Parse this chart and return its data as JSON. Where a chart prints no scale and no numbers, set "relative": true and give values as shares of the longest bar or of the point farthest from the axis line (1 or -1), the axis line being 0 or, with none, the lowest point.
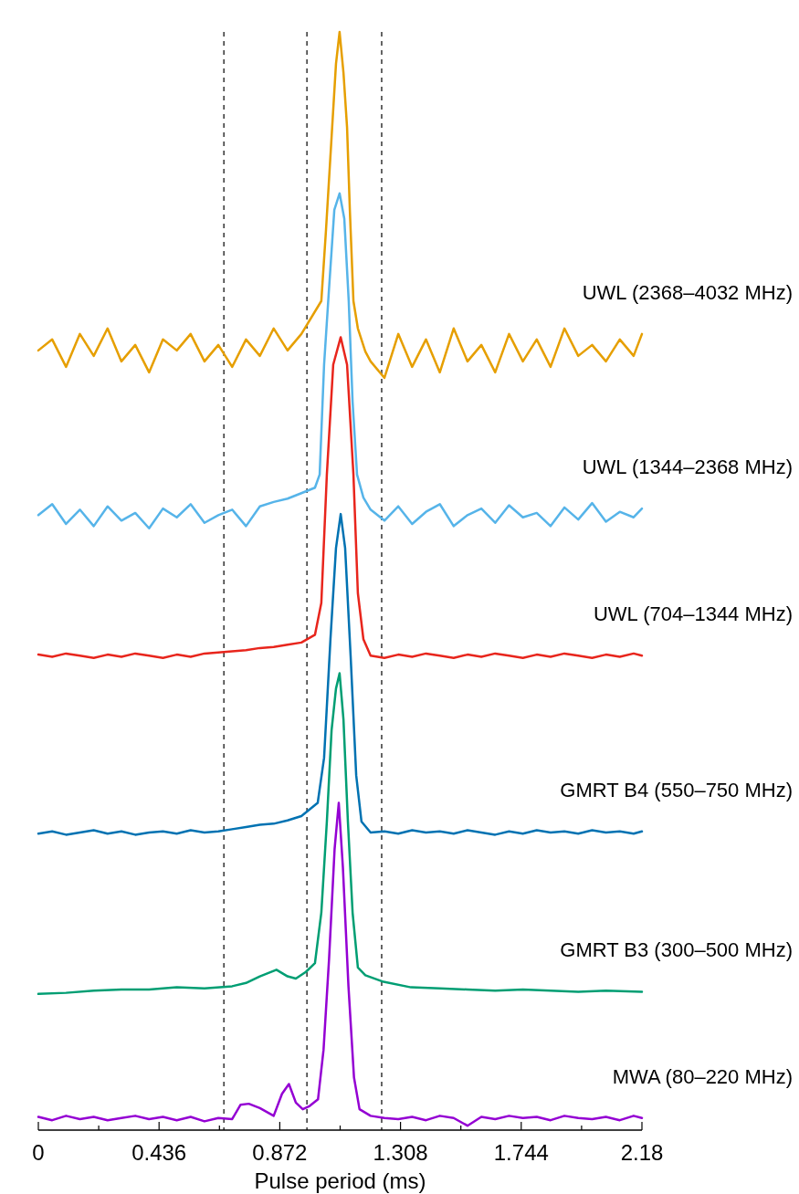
{
  "chart_data": {
    "type": "line",
    "xlabel": "Pulse period (ms)",
    "relative": true,
    "grid": false,
    "line_style": "solid",
    "xlim": [
      0,
      2.18
    ],
    "xticks": [
      0,
      {
        "value": 0.218,
        "label": null
      },
      0.436,
      {
        "value": 0.654,
        "label": null
      },
      0.872,
      {
        "value": 1.09,
        "label": null
      },
      1.308,
      {
        "value": 1.526,
        "label": null
      },
      1.744,
      {
        "value": 1.962,
        "label": null
      },
      2.18
    ],
    "ref_lines": [
      {
        "axis": "x",
        "value": 0.67,
        "color": "#000000",
        "line_style": "dashed"
      },
      {
        "axis": "x",
        "value": 0.97,
        "color": "#000000",
        "line_style": "dashed"
      },
      {
        "axis": "x",
        "value": 1.24,
        "color": "#000000",
        "line_style": "dashed"
      }
    ],
    "series": [
      {
        "name": "UWL (2368–4032 MHz)",
        "color": "#e69f00",
        "x": [
          0,
          0.05,
          0.1,
          0.15,
          0.2,
          0.25,
          0.3,
          0.35,
          0.4,
          0.45,
          0.5,
          0.55,
          0.6,
          0.65,
          0.7,
          0.75,
          0.8,
          0.85,
          0.9,
          0.95,
          1.022,
          1.039,
          1.059,
          1.075,
          1.088,
          1.102,
          1.115,
          1.125,
          1.138,
          1.154,
          1.181,
          1.2,
          1.25,
          1.3,
          1.35,
          1.4,
          1.45,
          1.5,
          1.55,
          1.6,
          1.65,
          1.7,
          1.75,
          1.8,
          1.85,
          1.9,
          1.95,
          2.0,
          2.05,
          2.1,
          2.15,
          2.18
        ],
        "values": [
          0.71,
          0.72,
          0.695,
          0.725,
          0.705,
          0.73,
          0.7,
          0.715,
          0.69,
          0.72,
          0.71,
          0.725,
          0.7,
          0.715,
          0.695,
          0.72,
          0.705,
          0.73,
          0.71,
          0.725,
          0.755,
          0.82,
          0.904,
          0.971,
          1.0,
          0.963,
          0.913,
          0.838,
          0.755,
          0.73,
          0.709,
          0.7,
          0.685,
          0.725,
          0.695,
          0.72,
          0.69,
          0.73,
          0.7,
          0.715,
          0.69,
          0.725,
          0.7,
          0.72,
          0.695,
          0.73,
          0.705,
          0.715,
          0.7,
          0.72,
          0.705,
          0.725
        ]
      },
      {
        "name": "UWL (1344–2368 MHz)",
        "color": "#56b4e9",
        "x": [
          0,
          0.05,
          0.1,
          0.15,
          0.2,
          0.25,
          0.3,
          0.35,
          0.4,
          0.45,
          0.5,
          0.55,
          0.6,
          0.65,
          0.7,
          0.75,
          0.8,
          0.85,
          0.9,
          0.95,
          0.999,
          1.016,
          1.032,
          1.049,
          1.069,
          1.088,
          1.105,
          1.121,
          1.135,
          1.151,
          1.174,
          1.2,
          1.25,
          1.3,
          1.35,
          1.4,
          1.45,
          1.5,
          1.55,
          1.6,
          1.65,
          1.7,
          1.75,
          1.8,
          1.85,
          1.9,
          1.95,
          2.0,
          2.05,
          2.1,
          2.15,
          2.18
        ],
        "values": [
          0.56,
          0.57,
          0.552,
          0.565,
          0.55,
          0.568,
          0.555,
          0.562,
          0.548,
          0.566,
          0.558,
          0.57,
          0.553,
          0.56,
          0.565,
          0.55,
          0.568,
          0.572,
          0.575,
          0.58,
          0.585,
          0.597,
          0.697,
          0.763,
          0.838,
          0.853,
          0.83,
          0.755,
          0.663,
          0.597,
          0.576,
          0.565,
          0.555,
          0.568,
          0.552,
          0.563,
          0.57,
          0.55,
          0.56,
          0.566,
          0.553,
          0.569,
          0.558,
          0.562,
          0.55,
          0.567,
          0.556,
          0.571,
          0.554,
          0.563,
          0.558,
          0.566
        ]
      },
      {
        "name": "UWL (704–1344 MHz)",
        "color": "#e8251c",
        "x": [
          0,
          0.05,
          0.1,
          0.15,
          0.2,
          0.25,
          0.3,
          0.35,
          0.4,
          0.45,
          0.5,
          0.55,
          0.6,
          0.65,
          0.7,
          0.75,
          0.8,
          0.85,
          0.9,
          0.95,
          0.999,
          1.022,
          1.042,
          1.065,
          1.092,
          1.115,
          1.138,
          1.154,
          1.174,
          1.2,
          1.25,
          1.3,
          1.35,
          1.4,
          1.45,
          1.5,
          1.55,
          1.6,
          1.65,
          1.7,
          1.75,
          1.8,
          1.85,
          1.9,
          1.95,
          2.0,
          2.05,
          2.1,
          2.15,
          2.18
        ],
        "values": [
          0.433,
          0.431,
          0.434,
          0.432,
          0.43,
          0.433,
          0.431,
          0.434,
          0.432,
          0.43,
          0.433,
          0.431,
          0.434,
          0.435,
          0.436,
          0.437,
          0.439,
          0.44,
          0.442,
          0.444,
          0.451,
          0.48,
          0.597,
          0.697,
          0.722,
          0.697,
          0.597,
          0.489,
          0.447,
          0.432,
          0.43,
          0.433,
          0.431,
          0.434,
          0.432,
          0.43,
          0.433,
          0.431,
          0.434,
          0.432,
          0.43,
          0.433,
          0.431,
          0.434,
          0.432,
          0.43,
          0.433,
          0.431,
          0.434,
          0.432
        ]
      },
      {
        "name": "GMRT B4 (550–750 MHz)",
        "color": "#0072b2",
        "x": [
          0,
          0.05,
          0.1,
          0.15,
          0.2,
          0.25,
          0.3,
          0.35,
          0.4,
          0.45,
          0.5,
          0.55,
          0.6,
          0.65,
          0.7,
          0.75,
          0.8,
          0.85,
          0.9,
          0.95,
          1.009,
          1.032,
          1.055,
          1.075,
          1.092,
          1.108,
          1.128,
          1.148,
          1.167,
          1.2,
          1.25,
          1.3,
          1.35,
          1.4,
          1.45,
          1.5,
          1.55,
          1.6,
          1.65,
          1.7,
          1.75,
          1.8,
          1.85,
          1.9,
          1.95,
          2.0,
          2.05,
          2.1,
          2.15,
          2.18
        ],
        "values": [
          0.27,
          0.272,
          0.269,
          0.271,
          0.273,
          0.27,
          0.272,
          0.269,
          0.271,
          0.272,
          0.27,
          0.273,
          0.271,
          0.272,
          0.274,
          0.276,
          0.278,
          0.279,
          0.282,
          0.286,
          0.298,
          0.339,
          0.447,
          0.53,
          0.561,
          0.53,
          0.431,
          0.323,
          0.281,
          0.271,
          0.272,
          0.27,
          0.273,
          0.271,
          0.272,
          0.27,
          0.273,
          0.271,
          0.269,
          0.272,
          0.27,
          0.273,
          0.271,
          0.272,
          0.27,
          0.273,
          0.271,
          0.272,
          0.27,
          0.272
        ]
      },
      {
        "name": "GMRT B3 (300–500 MHz)",
        "color": "#009e73",
        "x": [
          0,
          0.1,
          0.2,
          0.3,
          0.4,
          0.5,
          0.6,
          0.7,
          0.75,
          0.8,
          0.86,
          0.9,
          0.93,
          0.966,
          0.999,
          1.022,
          1.042,
          1.059,
          1.075,
          1.088,
          1.102,
          1.118,
          1.135,
          1.154,
          1.181,
          1.247,
          1.346,
          1.45,
          1.55,
          1.65,
          1.75,
          1.85,
          1.95,
          2.05,
          2.18
        ],
        "values": [
          0.124,
          0.125,
          0.127,
          0.128,
          0.128,
          0.13,
          0.129,
          0.131,
          0.134,
          0.14,
          0.146,
          0.14,
          0.138,
          0.144,
          0.152,
          0.198,
          0.281,
          0.364,
          0.402,
          0.416,
          0.374,
          0.281,
          0.198,
          0.148,
          0.141,
          0.135,
          0.13,
          0.129,
          0.128,
          0.127,
          0.128,
          0.127,
          0.126,
          0.127,
          0.126
        ]
      },
      {
        "name": "MWA (80–220 MHz)",
        "color": "#9400d3",
        "x": [
          0,
          0.05,
          0.1,
          0.15,
          0.2,
          0.25,
          0.3,
          0.35,
          0.4,
          0.45,
          0.5,
          0.55,
          0.6,
          0.65,
          0.7,
          0.73,
          0.76,
          0.8,
          0.85,
          0.88,
          0.905,
          0.93,
          0.955,
          0.98,
          1.01,
          1.03,
          1.05,
          1.07,
          1.085,
          1.1,
          1.12,
          1.14,
          1.16,
          1.2,
          1.25,
          1.3,
          1.35,
          1.4,
          1.45,
          1.5,
          1.55,
          1.6,
          1.65,
          1.7,
          1.75,
          1.8,
          1.85,
          1.9,
          1.95,
          2.0,
          2.05,
          2.1,
          2.15,
          2.18
        ],
        "values": [
          0.012,
          0.009,
          0.013,
          0.01,
          0.012,
          0.009,
          0.011,
          0.013,
          0.01,
          0.012,
          0.009,
          0.012,
          0.008,
          0.011,
          0.01,
          0.023,
          0.024,
          0.02,
          0.013,
          0.033,
          0.042,
          0.025,
          0.019,
          0.022,
          0.028,
          0.073,
          0.156,
          0.256,
          0.298,
          0.239,
          0.131,
          0.048,
          0.019,
          0.013,
          0.011,
          0.01,
          0.012,
          0.009,
          0.013,
          0.011,
          0.004,
          0.012,
          0.01,
          0.013,
          0.011,
          0.012,
          0.009,
          0.013,
          0.011,
          0.01,
          0.012,
          0.009,
          0.013,
          0.011
        ]
      }
    ]
  }
}
